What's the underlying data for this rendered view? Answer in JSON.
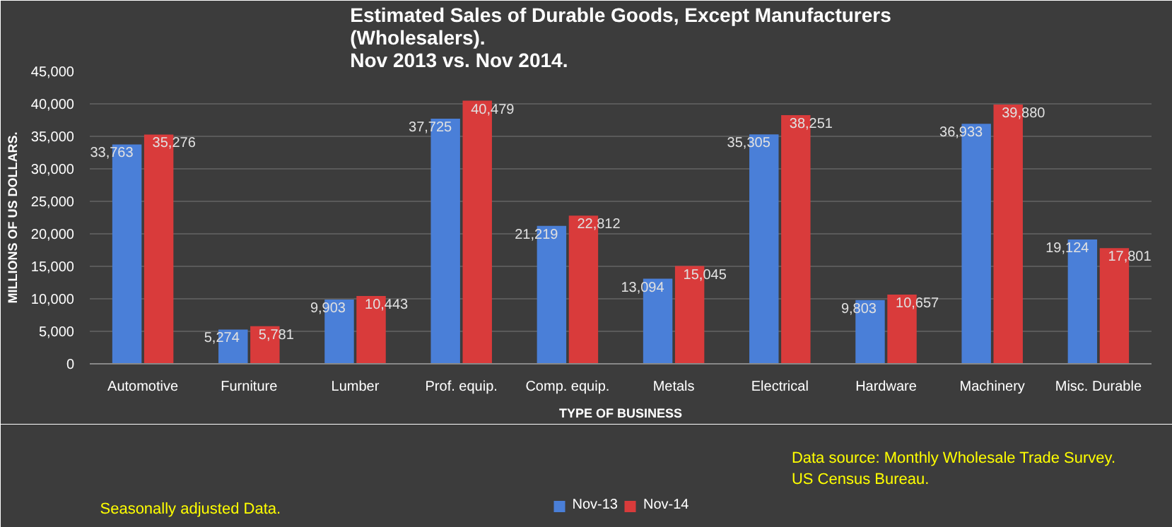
{
  "chart_data": {
    "type": "bar",
    "title": "Estimated Sales of Durable Goods, Except Manufacturers\n(Wholesalers).\nNov 2013 vs. Nov 2014.",
    "xlabel": "TYPE OF BUSINESS",
    "ylabel": "MILLIONS OF US DOLLARS.",
    "categories": [
      "Automotive",
      "Furniture",
      "Lumber",
      "Prof. equip.",
      "Comp. equip.",
      "Metals",
      "Electrical",
      "Hardware",
      "Machinery",
      "Misc. Durable"
    ],
    "series": [
      {
        "name": "Nov-13",
        "color": "#4a7fd8",
        "values": [
          33763,
          5274,
          9903,
          37725,
          21219,
          13094,
          35305,
          9803,
          36933,
          19124
        ],
        "value_labels": [
          "33,763",
          "5,274",
          "9,903",
          "37,725",
          "21,219",
          "13,094",
          "35,305",
          "9,803",
          "36,933",
          "19,124"
        ]
      },
      {
        "name": "Nov-14",
        "color": "#d93b3b",
        "values": [
          35276,
          5781,
          10443,
          40479,
          22812,
          15045,
          38251,
          10657,
          39880,
          17801
        ],
        "value_labels": [
          "35,276",
          "5,781",
          "10,443",
          "40,479",
          "22,812",
          "15,045",
          "38,251",
          "10,657",
          "39,880",
          "17,801"
        ]
      }
    ],
    "ylim": [
      0,
      45000
    ],
    "yticks": [
      0,
      {
        "value": 5000,
        "label": "5,000"
      },
      {
        "value": 10000,
        "label": "10,000"
      },
      {
        "value": 15000,
        "label": "15,000"
      },
      {
        "value": 20000,
        "label": "20,000"
      },
      {
        "value": 25000,
        "label": "25,000"
      },
      {
        "value": 30000,
        "label": "30,000"
      },
      {
        "value": 35000,
        "label": "35,000"
      },
      {
        "value": 40000,
        "label": "40,000"
      },
      {
        "value": 45000,
        "label": "45,000"
      }
    ],
    "grid": "y",
    "legend": "bottom",
    "data_labels": true,
    "annotations": [
      "Data source: Monthly Wholesale Trade Survey.\nUS Census Bureau.",
      "Seasonally adjusted Data."
    ]
  }
}
